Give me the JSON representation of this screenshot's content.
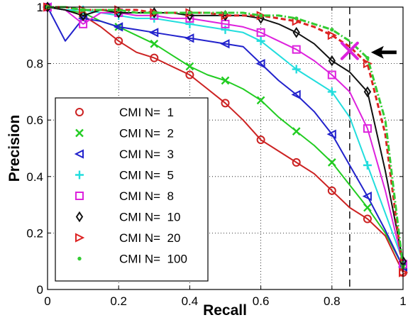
{
  "chart_data": {
    "type": "line",
    "title": "",
    "xlabel": "Recall",
    "ylabel": "Precision",
    "xlim": [
      0,
      1
    ],
    "ylim": [
      0,
      1
    ],
    "grid": true,
    "legend_position": "bottom-left",
    "x_ticks": [
      "0",
      "0.2",
      "0.4",
      "0.6",
      "0.8",
      "1"
    ],
    "y_ticks": [
      "0",
      "0.2",
      "0.4",
      "0.6",
      "0.8",
      "1"
    ],
    "series": [
      {
        "name": "CMI N=  1",
        "color": "#cc2222",
        "marker": "circle",
        "dash": "solid",
        "x": [
          0,
          0.05,
          0.1,
          0.15,
          0.2,
          0.25,
          0.3,
          0.35,
          0.4,
          0.45,
          0.5,
          0.55,
          0.6,
          0.65,
          0.7,
          0.75,
          0.8,
          0.85,
          0.9,
          0.95,
          1.0
        ],
        "y": [
          1.0,
          0.99,
          0.97,
          0.93,
          0.88,
          0.84,
          0.82,
          0.79,
          0.76,
          0.71,
          0.66,
          0.6,
          0.53,
          0.49,
          0.45,
          0.41,
          0.35,
          0.29,
          0.25,
          0.19,
          0.06
        ]
      },
      {
        "name": "CMI N=  2",
        "color": "#22cc22",
        "marker": "x",
        "dash": "solid",
        "x": [
          0,
          0.05,
          0.1,
          0.15,
          0.2,
          0.25,
          0.3,
          0.35,
          0.4,
          0.45,
          0.5,
          0.55,
          0.6,
          0.65,
          0.7,
          0.75,
          0.8,
          0.85,
          0.9,
          0.95,
          1.0
        ],
        "y": [
          1.0,
          0.99,
          0.98,
          0.95,
          0.93,
          0.9,
          0.87,
          0.83,
          0.79,
          0.76,
          0.74,
          0.71,
          0.67,
          0.61,
          0.56,
          0.51,
          0.45,
          0.37,
          0.29,
          0.2,
          0.08
        ]
      },
      {
        "name": "CMI N=  3",
        "color": "#2222cc",
        "marker": "triangle-left",
        "dash": "solid",
        "x": [
          0,
          0.05,
          0.1,
          0.15,
          0.2,
          0.25,
          0.3,
          0.35,
          0.4,
          0.45,
          0.5,
          0.55,
          0.6,
          0.65,
          0.7,
          0.75,
          0.8,
          0.85,
          0.9,
          0.95,
          1.0
        ],
        "y": [
          1.0,
          0.88,
          0.96,
          0.95,
          0.93,
          0.92,
          0.91,
          0.9,
          0.89,
          0.88,
          0.87,
          0.86,
          0.8,
          0.74,
          0.69,
          0.63,
          0.55,
          0.44,
          0.33,
          0.21,
          0.08
        ]
      },
      {
        "name": "CMI N=  5",
        "color": "#22dddd",
        "marker": "plus",
        "dash": "solid",
        "x": [
          0,
          0.05,
          0.1,
          0.15,
          0.2,
          0.25,
          0.3,
          0.35,
          0.4,
          0.45,
          0.5,
          0.55,
          0.6,
          0.65,
          0.7,
          0.75,
          0.8,
          0.85,
          0.9,
          0.95,
          1.0
        ],
        "y": [
          1.0,
          0.99,
          0.99,
          0.98,
          0.97,
          0.96,
          0.96,
          0.95,
          0.94,
          0.93,
          0.92,
          0.91,
          0.88,
          0.83,
          0.78,
          0.74,
          0.7,
          0.61,
          0.44,
          0.27,
          0.1
        ]
      },
      {
        "name": "CMI N=  8",
        "color": "#dd22dd",
        "marker": "square",
        "dash": "solid",
        "x": [
          0,
          0.05,
          0.1,
          0.15,
          0.2,
          0.25,
          0.3,
          0.35,
          0.4,
          0.45,
          0.5,
          0.55,
          0.6,
          0.65,
          0.7,
          0.75,
          0.8,
          0.85,
          0.9,
          0.95,
          1.0
        ],
        "y": [
          1.0,
          0.99,
          0.94,
          0.98,
          0.98,
          0.97,
          0.97,
          0.96,
          0.96,
          0.95,
          0.94,
          0.93,
          0.91,
          0.88,
          0.85,
          0.81,
          0.76,
          0.7,
          0.57,
          0.35,
          0.09
        ]
      },
      {
        "name": "CMI N=  10",
        "color": "#111111",
        "marker": "diamond",
        "dash": "solid",
        "x": [
          0,
          0.05,
          0.1,
          0.15,
          0.2,
          0.25,
          0.3,
          0.35,
          0.4,
          0.45,
          0.5,
          0.55,
          0.6,
          0.65,
          0.7,
          0.75,
          0.8,
          0.85,
          0.9,
          0.95,
          1.0
        ],
        "y": [
          1.0,
          0.99,
          0.97,
          0.99,
          0.98,
          0.98,
          0.98,
          0.98,
          0.97,
          0.97,
          0.97,
          0.97,
          0.96,
          0.94,
          0.91,
          0.87,
          0.81,
          0.77,
          0.7,
          0.42,
          0.1
        ]
      },
      {
        "name": "CMI N=  20",
        "color": "#dd2222",
        "marker": "triangle-right",
        "dash": "dashed",
        "x": [
          0,
          0.05,
          0.1,
          0.15,
          0.2,
          0.25,
          0.3,
          0.35,
          0.4,
          0.45,
          0.5,
          0.55,
          0.6,
          0.65,
          0.7,
          0.75,
          0.8,
          0.85,
          0.9,
          0.95,
          1.0
        ],
        "y": [
          1.0,
          1.0,
          0.99,
          0.99,
          0.99,
          0.99,
          0.98,
          0.98,
          0.98,
          0.98,
          0.97,
          0.97,
          0.97,
          0.96,
          0.95,
          0.93,
          0.9,
          0.86,
          0.8,
          0.55,
          0.06
        ]
      },
      {
        "name": "CMI N=  100",
        "color": "#33cc33",
        "marker": "dot",
        "dash": "dashdot",
        "x": [
          0,
          0.05,
          0.1,
          0.15,
          0.2,
          0.25,
          0.3,
          0.35,
          0.4,
          0.45,
          0.5,
          0.55,
          0.6,
          0.65,
          0.7,
          0.75,
          0.8,
          0.85,
          0.9,
          0.95,
          1.0
        ],
        "y": [
          1.0,
          1.0,
          0.99,
          0.99,
          0.99,
          0.98,
          0.98,
          0.98,
          0.98,
          0.98,
          0.98,
          0.98,
          0.97,
          0.97,
          0.96,
          0.94,
          0.92,
          0.88,
          0.82,
          0.6,
          0.08
        ]
      }
    ],
    "annotations": {
      "operating_point": {
        "x": 0.85,
        "y": 0.845,
        "marker": "x",
        "color": "#dd22dd"
      },
      "vertical_line": {
        "x": 0.85,
        "style": "dashed",
        "color": "#000000"
      },
      "arrow": {
        "points_to": "operating_point",
        "direction": "left",
        "color": "#000000"
      }
    }
  }
}
